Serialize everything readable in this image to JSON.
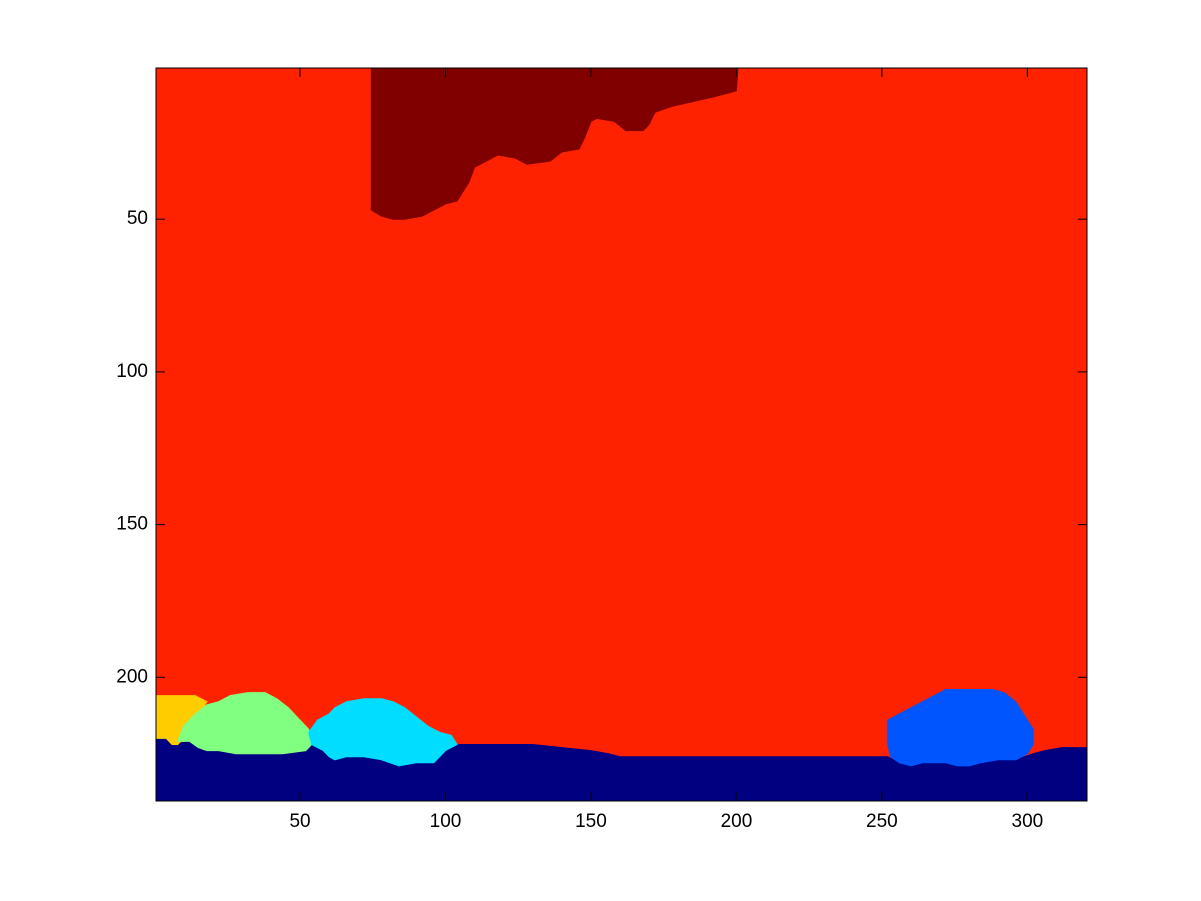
{
  "chart_data": {
    "type": "heatmap",
    "title": "",
    "xlabel": "",
    "ylabel": "",
    "xlim": [
      0.5,
      320.5
    ],
    "ylim": [
      0.5,
      240.5
    ],
    "y_reversed": true,
    "x_ticks": [
      50,
      100,
      150,
      200,
      250,
      300
    ],
    "x_tick_labels": [
      "50",
      "100",
      "150",
      "200",
      "250",
      "300"
    ],
    "y_ticks": [
      50,
      100,
      150,
      200
    ],
    "y_tick_labels": [
      "50",
      "100",
      "150",
      "200"
    ],
    "grid": false,
    "colormap": "jet",
    "regions": [
      {
        "name": "background",
        "color": "#ff2200",
        "polygon": [
          [
            0.5,
            0.5
          ],
          [
            320.5,
            0.5
          ],
          [
            320.5,
            240.5
          ],
          [
            0.5,
            240.5
          ]
        ]
      },
      {
        "name": "top-region",
        "color": "#800000",
        "polygon": [
          [
            74.5,
            0.5
          ],
          [
            200.5,
            0.5
          ],
          [
            200,
            8
          ],
          [
            192,
            10
          ],
          [
            178,
            13
          ],
          [
            172,
            15
          ],
          [
            170,
            19
          ],
          [
            168,
            21
          ],
          [
            162,
            21
          ],
          [
            158,
            18
          ],
          [
            152,
            17
          ],
          [
            150,
            18
          ],
          [
            148,
            23
          ],
          [
            146,
            27
          ],
          [
            140,
            28
          ],
          [
            136,
            31
          ],
          [
            128,
            32
          ],
          [
            124,
            30
          ],
          [
            118,
            29
          ],
          [
            114,
            31
          ],
          [
            110,
            33
          ],
          [
            108,
            38
          ],
          [
            106,
            41
          ],
          [
            104,
            44
          ],
          [
            100,
            45
          ],
          [
            96,
            47
          ],
          [
            92,
            49
          ],
          [
            86,
            50
          ],
          [
            82,
            50
          ],
          [
            78,
            49
          ],
          [
            74.5,
            47
          ]
        ]
      },
      {
        "name": "ground",
        "color": "#000080",
        "polygon": [
          [
            0.5,
            220
          ],
          [
            4,
            220
          ],
          [
            6,
            222
          ],
          [
            12,
            221
          ],
          [
            15,
            223
          ],
          [
            18,
            224
          ],
          [
            22,
            224
          ],
          [
            28,
            225
          ],
          [
            36,
            225
          ],
          [
            44,
            225
          ],
          [
            52,
            224
          ],
          [
            54,
            222
          ],
          [
            58,
            224
          ],
          [
            60,
            226
          ],
          [
            62,
            227
          ],
          [
            66,
            226
          ],
          [
            72,
            226
          ],
          [
            78,
            227
          ],
          [
            84,
            229
          ],
          [
            90,
            228
          ],
          [
            96,
            228
          ],
          [
            100,
            224
          ],
          [
            104,
            222
          ],
          [
            120,
            222
          ],
          [
            130,
            222
          ],
          [
            140,
            223
          ],
          [
            150,
            224
          ],
          [
            156,
            225
          ],
          [
            160,
            226
          ],
          [
            166,
            226
          ],
          [
            172,
            226
          ],
          [
            178,
            226
          ],
          [
            184,
            226
          ],
          [
            190,
            226
          ],
          [
            200,
            226
          ],
          [
            210,
            226
          ],
          [
            220,
            226
          ],
          [
            230,
            226
          ],
          [
            240,
            226
          ],
          [
            252,
            226
          ],
          [
            256,
            228
          ],
          [
            260,
            229
          ],
          [
            264,
            228
          ],
          [
            268,
            228
          ],
          [
            272,
            228
          ],
          [
            276,
            229
          ],
          [
            280,
            229
          ],
          [
            284,
            228
          ],
          [
            290,
            227
          ],
          [
            296,
            227
          ],
          [
            302,
            225
          ],
          [
            306,
            224
          ],
          [
            312,
            223
          ],
          [
            320.5,
            223
          ],
          [
            320.5,
            240.5
          ],
          [
            0.5,
            240.5
          ]
        ]
      },
      {
        "name": "object-yellow",
        "color": "#ffcc00",
        "polygon": [
          [
            0.5,
            206
          ],
          [
            6,
            206
          ],
          [
            14,
            206
          ],
          [
            18,
            208
          ],
          [
            16,
            211
          ],
          [
            12,
            216
          ],
          [
            10,
            220
          ],
          [
            8,
            222
          ],
          [
            6,
            222
          ],
          [
            4,
            220
          ],
          [
            0.5,
            220
          ]
        ]
      },
      {
        "name": "object-green",
        "color": "#80ff80",
        "polygon": [
          [
            8,
            221
          ],
          [
            10,
            216
          ],
          [
            14,
            212
          ],
          [
            18,
            209
          ],
          [
            22,
            208
          ],
          [
            26,
            206
          ],
          [
            32,
            205
          ],
          [
            38,
            205
          ],
          [
            42,
            207
          ],
          [
            46,
            210
          ],
          [
            50,
            214
          ],
          [
            53,
            217
          ],
          [
            54,
            222
          ],
          [
            52,
            224
          ],
          [
            44,
            225
          ],
          [
            36,
            225
          ],
          [
            28,
            225
          ],
          [
            22,
            224
          ],
          [
            18,
            224
          ],
          [
            15,
            223
          ],
          [
            12,
            221
          ]
        ]
      },
      {
        "name": "object-cyan",
        "color": "#00ddff",
        "polygon": [
          [
            53,
            218
          ],
          [
            56,
            214
          ],
          [
            60,
            212
          ],
          [
            62,
            210
          ],
          [
            66,
            208
          ],
          [
            72,
            207
          ],
          [
            78,
            207
          ],
          [
            82,
            208
          ],
          [
            86,
            210
          ],
          [
            90,
            213
          ],
          [
            94,
            216
          ],
          [
            98,
            218
          ],
          [
            102,
            219
          ],
          [
            104,
            222
          ],
          [
            100,
            224
          ],
          [
            96,
            228
          ],
          [
            90,
            228
          ],
          [
            84,
            229
          ],
          [
            78,
            227
          ],
          [
            72,
            226
          ],
          [
            66,
            226
          ],
          [
            62,
            227
          ],
          [
            60,
            226
          ],
          [
            58,
            224
          ],
          [
            54,
            222
          ]
        ]
      },
      {
        "name": "object-blue",
        "color": "#0055ff",
        "polygon": [
          [
            252,
            214
          ],
          [
            256,
            212
          ],
          [
            260,
            210
          ],
          [
            264,
            208
          ],
          [
            268,
            206
          ],
          [
            272,
            204
          ],
          [
            280,
            204
          ],
          [
            288,
            204
          ],
          [
            292,
            205
          ],
          [
            296,
            208
          ],
          [
            298,
            211
          ],
          [
            300,
            214
          ],
          [
            302,
            217
          ],
          [
            302,
            222
          ],
          [
            300,
            225
          ],
          [
            296,
            227
          ],
          [
            290,
            227
          ],
          [
            284,
            228
          ],
          [
            280,
            229
          ],
          [
            276,
            229
          ],
          [
            272,
            228
          ],
          [
            268,
            228
          ],
          [
            264,
            228
          ],
          [
            260,
            229
          ],
          [
            256,
            228
          ],
          [
            253,
            226
          ],
          [
            252,
            222
          ]
        ]
      }
    ]
  }
}
